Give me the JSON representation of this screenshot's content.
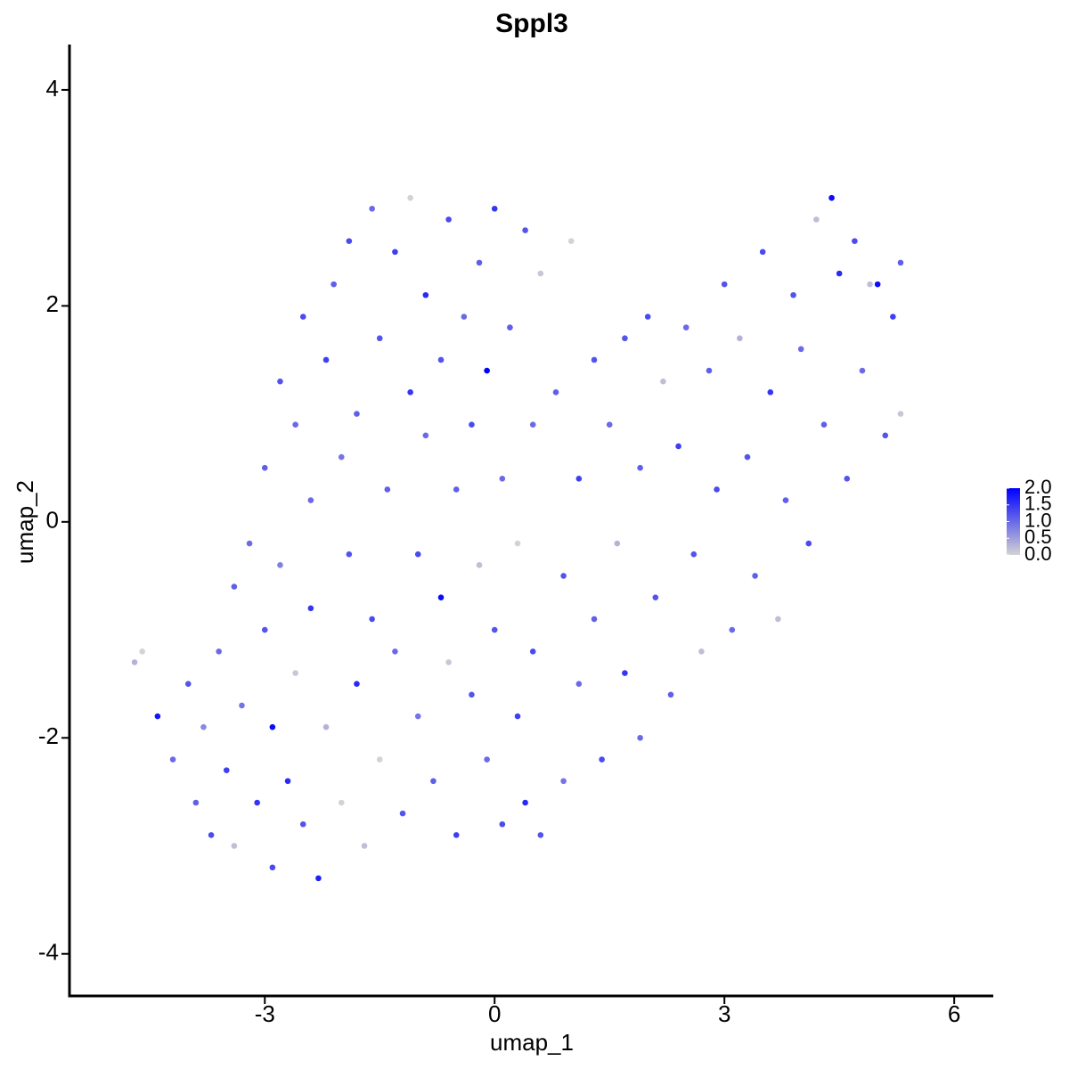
{
  "chart_data": {
    "type": "scatter",
    "title": "Sppl3",
    "xlabel": "umap_1",
    "ylabel": "umap_2",
    "xlim": [
      -5.55,
      6.51
    ],
    "ylim": [
      -4.39,
      4.42
    ],
    "xticks": [
      -3,
      0,
      3,
      6
    ],
    "yticks": [
      -4,
      -2,
      0,
      2,
      4
    ],
    "colors": [
      "#d3d3d3",
      "#0000ff"
    ],
    "colorbar_lim": [
      0,
      2
    ],
    "colorbar_ticks": [
      {
        "value": 0,
        "label": "0.0"
      },
      {
        "value": 0.5,
        "label": "0.5"
      },
      {
        "value": 1,
        "label": "1.0"
      },
      {
        "value": 1.5,
        "label": "1.5"
      },
      {
        "value": 2,
        "label": "2.0"
      }
    ],
    "series": [
      {
        "x": [
          -4.7,
          -4.6,
          -4.4,
          -4.2,
          -4.0,
          -3.9,
          -3.8,
          -3.7,
          -3.6,
          -3.5,
          -3.4,
          -3.4,
          -3.3,
          -3.2,
          -3.1,
          -3.0,
          -3.0,
          -2.9,
          -2.9,
          -2.8,
          -2.8,
          -2.7,
          -2.6,
          -2.6,
          -2.5,
          -2.5,
          -2.4,
          -2.4,
          -2.3,
          -2.2,
          -2.2,
          -2.1,
          -2.0,
          -2.0,
          -1.9,
          -1.9,
          -1.8,
          -1.8,
          -1.7,
          -1.6,
          -1.6,
          -1.5,
          -1.5,
          -1.4,
          -1.3,
          -1.3,
          -1.2,
          -1.1,
          -1.1,
          -1.0,
          -1.0,
          -0.9,
          -0.9,
          -0.8,
          -0.7,
          -0.7,
          -0.6,
          -0.6,
          -0.5,
          -0.5,
          -0.4,
          -0.3,
          -0.3,
          -0.2,
          -0.2,
          -0.1,
          -0.1,
          0.0,
          0.0,
          0.1,
          0.1,
          0.2,
          0.3,
          0.3,
          0.4,
          0.4,
          0.5,
          0.5,
          0.6,
          0.6,
          0.8,
          0.9,
          0.9,
          1.0,
          1.1,
          1.1,
          1.3,
          1.3,
          1.4,
          1.5,
          1.6,
          1.7,
          1.7,
          1.9,
          1.9,
          2.0,
          2.1,
          2.2,
          2.3,
          2.4,
          2.5,
          2.6,
          2.7,
          2.8,
          2.9,
          3.0,
          3.1,
          3.2,
          3.3,
          3.4,
          3.5,
          3.6,
          3.7,
          3.8,
          3.9,
          4.0,
          4.1,
          4.2,
          4.3,
          4.4,
          4.5,
          4.6,
          4.7,
          4.8,
          4.9,
          5.0,
          5.1,
          5.2,
          5.3,
          5.3
        ],
        "y": [
          -1.3,
          -1.2,
          -1.8,
          -2.2,
          -1.5,
          -2.6,
          -1.9,
          -2.9,
          -1.2,
          -2.3,
          -0.6,
          -3.0,
          -1.7,
          -0.2,
          -2.6,
          -1.0,
          0.5,
          -1.9,
          -3.2,
          1.3,
          -0.4,
          -2.4,
          0.9,
          -1.4,
          1.9,
          -2.8,
          -0.8,
          0.2,
          -3.3,
          1.5,
          -1.9,
          2.2,
          0.6,
          -2.6,
          -0.3,
          2.6,
          1.0,
          -1.5,
          -3.0,
          2.9,
          -0.9,
          1.7,
          -2.2,
          0.3,
          2.5,
          -1.2,
          -2.7,
          1.2,
          3.0,
          -0.3,
          -1.8,
          2.1,
          0.8,
          -2.4,
          -0.7,
          1.5,
          2.8,
          -1.3,
          0.3,
          -2.9,
          1.9,
          -1.6,
          0.9,
          2.4,
          -0.4,
          1.4,
          -2.2,
          2.9,
          -1.0,
          0.4,
          -2.8,
          1.8,
          -1.8,
          -0.2,
          2.7,
          -2.6,
          0.9,
          -1.2,
          2.3,
          -2.9,
          1.2,
          -0.5,
          -2.4,
          2.6,
          0.4,
          -1.5,
          1.5,
          -0.9,
          -2.2,
          0.9,
          -0.2,
          1.7,
          -1.4,
          0.5,
          -2.0,
          1.9,
          -0.7,
          1.3,
          -1.6,
          0.7,
          1.8,
          -0.3,
          -1.2,
          1.4,
          0.3,
          2.2,
          -1.0,
          1.7,
          0.6,
          -0.5,
          2.5,
          1.2,
          -0.9,
          0.2,
          2.1,
          1.6,
          -0.2,
          2.8,
          0.9,
          3.0,
          2.3,
          0.4,
          2.6,
          1.4,
          2.2,
          2.2,
          0.8,
          1.9,
          2.4,
          1.0
        ],
        "values": [
          0.3,
          0,
          1.8,
          1,
          1.2,
          1.1,
          0.7,
          1.3,
          1.0,
          1.4,
          1.1,
          0.2,
          0.9,
          1.0,
          1.5,
          1.2,
          1.1,
          1.9,
          1.3,
          1.2,
          0.8,
          1.6,
          1.0,
          0.1,
          1.3,
          1.2,
          1.5,
          1.0,
          1.7,
          1.4,
          0.3,
          1.1,
          0.9,
          0,
          1.2,
          1.3,
          1.1,
          1.6,
          0.2,
          1.0,
          1.3,
          1.2,
          0,
          1.1,
          1.4,
          1.0,
          1.2,
          1.5,
          0,
          1.3,
          0.9,
          1.6,
          1.0,
          1.1,
          1.9,
          1.2,
          1.3,
          0.1,
          1.1,
          1.4,
          1.0,
          1.2,
          1.3,
          1.1,
          0.2,
          2.0,
          1.0,
          1.5,
          1.2,
          1.0,
          1.3,
          1.1,
          1.4,
          0,
          1.2,
          1.6,
          1.0,
          1.3,
          0.1,
          1.2,
          1.1,
          1.2,
          0.9,
          0,
          1.4,
          1.0,
          1.2,
          1.1,
          1.3,
          1.0,
          0.3,
          1.2,
          1.5,
          1.1,
          1.0,
          1.3,
          1.2,
          0.2,
          1.1,
          1.4,
          1.0,
          1.2,
          0.2,
          1.1,
          1.3,
          1.2,
          1.0,
          0.3,
          1.2,
          1.1,
          1.3,
          1.5,
          0.2,
          1.1,
          1.2,
          1.0,
          1.3,
          0.2,
          1.1,
          1.9,
          1.6,
          1.2,
          1.3,
          1.0,
          0.2,
          1.9,
          1.2,
          1.4,
          1.1,
          0.1
        ]
      }
    ]
  }
}
